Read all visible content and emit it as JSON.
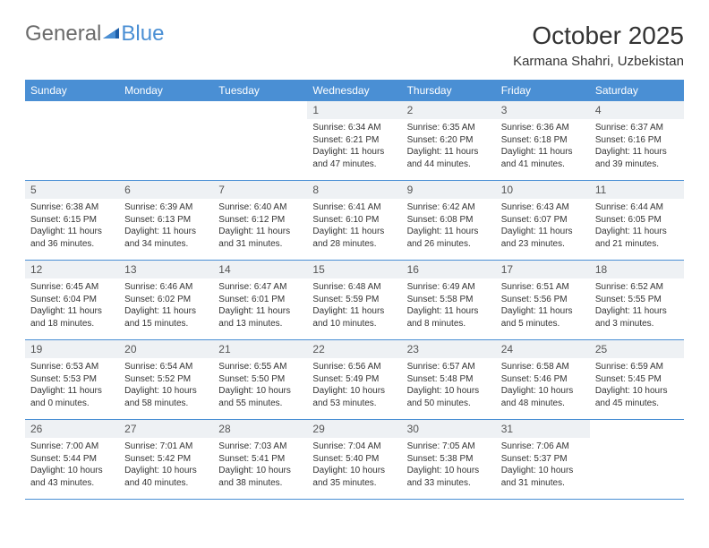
{
  "logo": {
    "text1": "General",
    "text2": "Blue"
  },
  "title": "October 2025",
  "location": "Karmana Shahri, Uzbekistan",
  "colors": {
    "header_bg": "#4a8fd4",
    "daynum_bg": "#eef1f4",
    "border": "#4a8fd4"
  },
  "weekdays": [
    "Sunday",
    "Monday",
    "Tuesday",
    "Wednesday",
    "Thursday",
    "Friday",
    "Saturday"
  ],
  "weeks": [
    [
      null,
      null,
      null,
      {
        "n": "1",
        "sr": "Sunrise: 6:34 AM",
        "ss": "Sunset: 6:21 PM",
        "d1": "Daylight: 11 hours",
        "d2": "and 47 minutes."
      },
      {
        "n": "2",
        "sr": "Sunrise: 6:35 AM",
        "ss": "Sunset: 6:20 PM",
        "d1": "Daylight: 11 hours",
        "d2": "and 44 minutes."
      },
      {
        "n": "3",
        "sr": "Sunrise: 6:36 AM",
        "ss": "Sunset: 6:18 PM",
        "d1": "Daylight: 11 hours",
        "d2": "and 41 minutes."
      },
      {
        "n": "4",
        "sr": "Sunrise: 6:37 AM",
        "ss": "Sunset: 6:16 PM",
        "d1": "Daylight: 11 hours",
        "d2": "and 39 minutes."
      }
    ],
    [
      {
        "n": "5",
        "sr": "Sunrise: 6:38 AM",
        "ss": "Sunset: 6:15 PM",
        "d1": "Daylight: 11 hours",
        "d2": "and 36 minutes."
      },
      {
        "n": "6",
        "sr": "Sunrise: 6:39 AM",
        "ss": "Sunset: 6:13 PM",
        "d1": "Daylight: 11 hours",
        "d2": "and 34 minutes."
      },
      {
        "n": "7",
        "sr": "Sunrise: 6:40 AM",
        "ss": "Sunset: 6:12 PM",
        "d1": "Daylight: 11 hours",
        "d2": "and 31 minutes."
      },
      {
        "n": "8",
        "sr": "Sunrise: 6:41 AM",
        "ss": "Sunset: 6:10 PM",
        "d1": "Daylight: 11 hours",
        "d2": "and 28 minutes."
      },
      {
        "n": "9",
        "sr": "Sunrise: 6:42 AM",
        "ss": "Sunset: 6:08 PM",
        "d1": "Daylight: 11 hours",
        "d2": "and 26 minutes."
      },
      {
        "n": "10",
        "sr": "Sunrise: 6:43 AM",
        "ss": "Sunset: 6:07 PM",
        "d1": "Daylight: 11 hours",
        "d2": "and 23 minutes."
      },
      {
        "n": "11",
        "sr": "Sunrise: 6:44 AM",
        "ss": "Sunset: 6:05 PM",
        "d1": "Daylight: 11 hours",
        "d2": "and 21 minutes."
      }
    ],
    [
      {
        "n": "12",
        "sr": "Sunrise: 6:45 AM",
        "ss": "Sunset: 6:04 PM",
        "d1": "Daylight: 11 hours",
        "d2": "and 18 minutes."
      },
      {
        "n": "13",
        "sr": "Sunrise: 6:46 AM",
        "ss": "Sunset: 6:02 PM",
        "d1": "Daylight: 11 hours",
        "d2": "and 15 minutes."
      },
      {
        "n": "14",
        "sr": "Sunrise: 6:47 AM",
        "ss": "Sunset: 6:01 PM",
        "d1": "Daylight: 11 hours",
        "d2": "and 13 minutes."
      },
      {
        "n": "15",
        "sr": "Sunrise: 6:48 AM",
        "ss": "Sunset: 5:59 PM",
        "d1": "Daylight: 11 hours",
        "d2": "and 10 minutes."
      },
      {
        "n": "16",
        "sr": "Sunrise: 6:49 AM",
        "ss": "Sunset: 5:58 PM",
        "d1": "Daylight: 11 hours",
        "d2": "and 8 minutes."
      },
      {
        "n": "17",
        "sr": "Sunrise: 6:51 AM",
        "ss": "Sunset: 5:56 PM",
        "d1": "Daylight: 11 hours",
        "d2": "and 5 minutes."
      },
      {
        "n": "18",
        "sr": "Sunrise: 6:52 AM",
        "ss": "Sunset: 5:55 PM",
        "d1": "Daylight: 11 hours",
        "d2": "and 3 minutes."
      }
    ],
    [
      {
        "n": "19",
        "sr": "Sunrise: 6:53 AM",
        "ss": "Sunset: 5:53 PM",
        "d1": "Daylight: 11 hours",
        "d2": "and 0 minutes."
      },
      {
        "n": "20",
        "sr": "Sunrise: 6:54 AM",
        "ss": "Sunset: 5:52 PM",
        "d1": "Daylight: 10 hours",
        "d2": "and 58 minutes."
      },
      {
        "n": "21",
        "sr": "Sunrise: 6:55 AM",
        "ss": "Sunset: 5:50 PM",
        "d1": "Daylight: 10 hours",
        "d2": "and 55 minutes."
      },
      {
        "n": "22",
        "sr": "Sunrise: 6:56 AM",
        "ss": "Sunset: 5:49 PM",
        "d1": "Daylight: 10 hours",
        "d2": "and 53 minutes."
      },
      {
        "n": "23",
        "sr": "Sunrise: 6:57 AM",
        "ss": "Sunset: 5:48 PM",
        "d1": "Daylight: 10 hours",
        "d2": "and 50 minutes."
      },
      {
        "n": "24",
        "sr": "Sunrise: 6:58 AM",
        "ss": "Sunset: 5:46 PM",
        "d1": "Daylight: 10 hours",
        "d2": "and 48 minutes."
      },
      {
        "n": "25",
        "sr": "Sunrise: 6:59 AM",
        "ss": "Sunset: 5:45 PM",
        "d1": "Daylight: 10 hours",
        "d2": "and 45 minutes."
      }
    ],
    [
      {
        "n": "26",
        "sr": "Sunrise: 7:00 AM",
        "ss": "Sunset: 5:44 PM",
        "d1": "Daylight: 10 hours",
        "d2": "and 43 minutes."
      },
      {
        "n": "27",
        "sr": "Sunrise: 7:01 AM",
        "ss": "Sunset: 5:42 PM",
        "d1": "Daylight: 10 hours",
        "d2": "and 40 minutes."
      },
      {
        "n": "28",
        "sr": "Sunrise: 7:03 AM",
        "ss": "Sunset: 5:41 PM",
        "d1": "Daylight: 10 hours",
        "d2": "and 38 minutes."
      },
      {
        "n": "29",
        "sr": "Sunrise: 7:04 AM",
        "ss": "Sunset: 5:40 PM",
        "d1": "Daylight: 10 hours",
        "d2": "and 35 minutes."
      },
      {
        "n": "30",
        "sr": "Sunrise: 7:05 AM",
        "ss": "Sunset: 5:38 PM",
        "d1": "Daylight: 10 hours",
        "d2": "and 33 minutes."
      },
      {
        "n": "31",
        "sr": "Sunrise: 7:06 AM",
        "ss": "Sunset: 5:37 PM",
        "d1": "Daylight: 10 hours",
        "d2": "and 31 minutes."
      },
      null
    ]
  ]
}
